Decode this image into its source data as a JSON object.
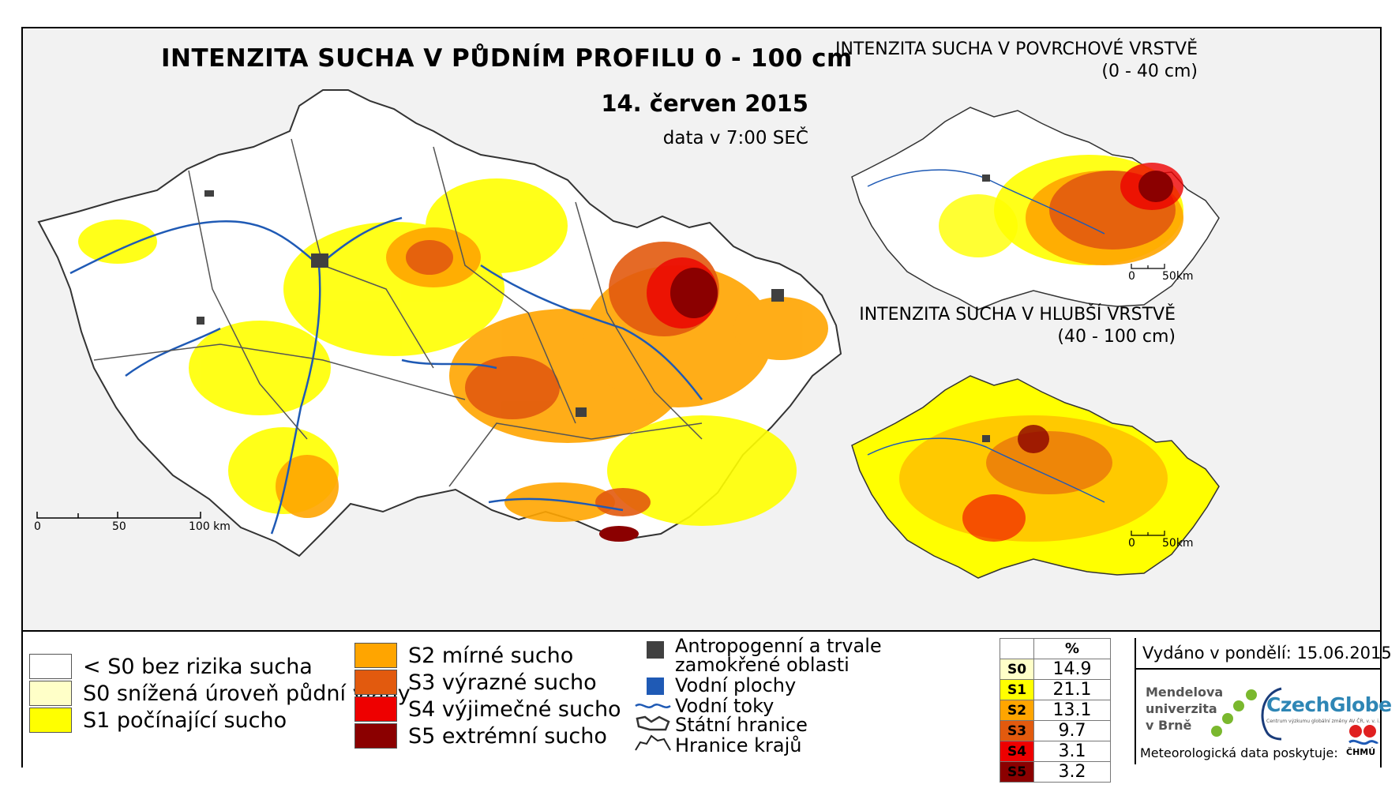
{
  "main_map": {
    "title": "INTENZITA SUCHA V PŮDNÍM PROFILU 0 - 100 cm",
    "date": "14. červen 2015",
    "time_note": "data v 7:00 SEČ",
    "scale": {
      "ticks": [
        "0",
        "50",
        "100 km"
      ]
    }
  },
  "inset_surface": {
    "title": "INTENZITA SUCHA V POVRCHOVÉ VRSTVĚ",
    "depth": "(0 - 40 cm)",
    "scale": {
      "ticks": [
        "0",
        "50km"
      ]
    }
  },
  "inset_deep": {
    "title": "INTENZITA SUCHA V HLUBŠÍ VRSTVĚ",
    "depth": "(40 - 100 cm)",
    "scale": {
      "ticks": [
        "0",
        "50km"
      ]
    }
  },
  "legend": {
    "classes": [
      {
        "label": "< S0 bez rizika sucha",
        "color": "#ffffff"
      },
      {
        "label": "S0 snížená úroveň půdní vláhy",
        "color": "#ffffc8"
      },
      {
        "label": "S1 počínající sucho",
        "color": "#ffff00"
      },
      {
        "label": "S2 mírné sucho",
        "color": "#ffa500"
      },
      {
        "label": "S3 výrazné sucho",
        "color": "#e25a0e"
      },
      {
        "label": "S4 výjimečné sucho",
        "color": "#ee0000"
      },
      {
        "label": "S5 extrémní sucho",
        "color": "#8b0000"
      }
    ],
    "symbols": [
      {
        "label": "Antropogenní a trvale",
        "label2": "zamokřené oblasti",
        "icon": "dark-square-icon",
        "color": "#404040"
      },
      {
        "label": "Vodní plochy",
        "icon": "blue-square-icon",
        "color": "#1f5ab5"
      },
      {
        "label": "Vodní toky",
        "icon": "river-line-icon",
        "color": "#1f5ab5"
      },
      {
        "label": "Státní hranice",
        "icon": "state-border-icon"
      },
      {
        "label": "Hranice krajů",
        "icon": "region-border-icon"
      }
    ]
  },
  "stats_table": {
    "header": "%",
    "rows": [
      {
        "cls": "S0",
        "value": "14.9",
        "color": "#ffffc8"
      },
      {
        "cls": "S1",
        "value": "21.1",
        "color": "#ffff00"
      },
      {
        "cls": "S2",
        "value": "13.1",
        "color": "#ffa500"
      },
      {
        "cls": "S3",
        "value": "9.7",
        "color": "#e25a0e"
      },
      {
        "cls": "S4",
        "value": "3.1",
        "color": "#ee0000"
      },
      {
        "cls": "S5",
        "value": "3.2",
        "color": "#8b0000"
      }
    ]
  },
  "issued": "Vydáno v pondělí: 15.06.2015",
  "logos": {
    "mendel": [
      "Mendelova",
      "univerzita",
      "v Brně"
    ],
    "czechglobe": "CzechGlobe",
    "czechglobe_sub": "Centrum výzkumu globální změny AV ČR, v. v. i.",
    "chmu": "ČHMÚ"
  },
  "meteo_provider": "Meteorologická data poskytuje:",
  "colors": {
    "river": "#1f5ab5",
    "border": "#333333",
    "region": "#555555",
    "urban": "#404040"
  }
}
